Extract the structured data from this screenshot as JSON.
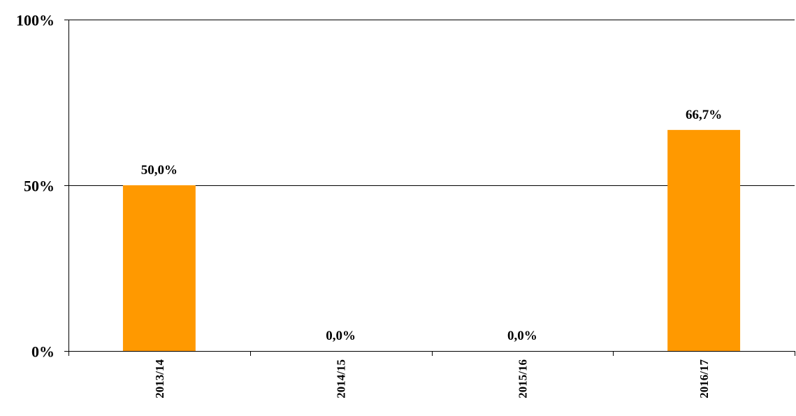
{
  "chart_data": {
    "type": "bar",
    "categories": [
      "2013/14",
      "2014/15",
      "2015/16",
      "2016/17"
    ],
    "values": [
      50.0,
      0.0,
      0.0,
      66.7
    ],
    "data_labels": [
      "50,0%",
      "0,0%",
      "0,0%",
      "66,7%"
    ],
    "y_ticks": [
      0,
      50,
      100
    ],
    "y_tick_labels": [
      "0%",
      "50%",
      "100%"
    ],
    "ylim": [
      0,
      100
    ],
    "grid": true,
    "legend": "none",
    "bar_color": "#FF9900",
    "title": "",
    "xlabel": "",
    "ylabel": ""
  }
}
